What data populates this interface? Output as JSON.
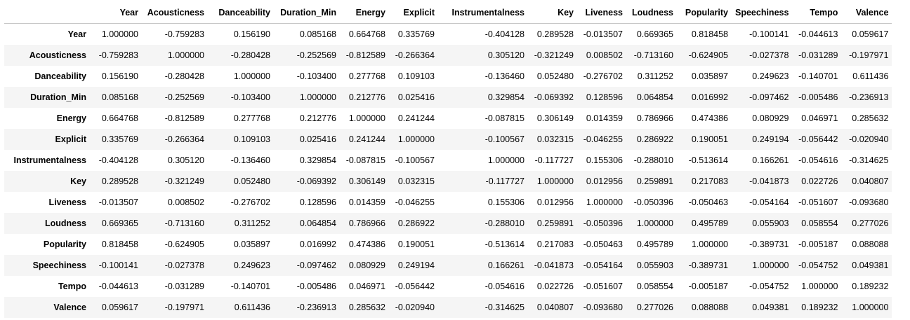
{
  "columns": [
    "Year",
    "Acousticness",
    "Danceability",
    "Duration_Min",
    "Energy",
    "Explicit",
    "Instrumentalness",
    "Key",
    "Liveness",
    "Loudness",
    "Popularity",
    "Speechiness",
    "Tempo",
    "Valence"
  ],
  "rows": [
    {
      "label": "Year",
      "values": [
        "1.000000",
        "-0.759283",
        "0.156190",
        "0.085168",
        "0.664768",
        "0.335769",
        "-0.404128",
        "0.289528",
        "-0.013507",
        "0.669365",
        "0.818458",
        "-0.100141",
        "-0.044613",
        "0.059617"
      ]
    },
    {
      "label": "Acousticness",
      "values": [
        "-0.759283",
        "1.000000",
        "-0.280428",
        "-0.252569",
        "-0.812589",
        "-0.266364",
        "0.305120",
        "-0.321249",
        "0.008502",
        "-0.713160",
        "-0.624905",
        "-0.027378",
        "-0.031289",
        "-0.197971"
      ]
    },
    {
      "label": "Danceability",
      "values": [
        "0.156190",
        "-0.280428",
        "1.000000",
        "-0.103400",
        "0.277768",
        "0.109103",
        "-0.136460",
        "0.052480",
        "-0.276702",
        "0.311252",
        "0.035897",
        "0.249623",
        "-0.140701",
        "0.611436"
      ]
    },
    {
      "label": "Duration_Min",
      "values": [
        "0.085168",
        "-0.252569",
        "-0.103400",
        "1.000000",
        "0.212776",
        "0.025416",
        "0.329854",
        "-0.069392",
        "0.128596",
        "0.064854",
        "0.016992",
        "-0.097462",
        "-0.005486",
        "-0.236913"
      ]
    },
    {
      "label": "Energy",
      "values": [
        "0.664768",
        "-0.812589",
        "0.277768",
        "0.212776",
        "1.000000",
        "0.241244",
        "-0.087815",
        "0.306149",
        "0.014359",
        "0.786966",
        "0.474386",
        "0.080929",
        "0.046971",
        "0.285632"
      ]
    },
    {
      "label": "Explicit",
      "values": [
        "0.335769",
        "-0.266364",
        "0.109103",
        "0.025416",
        "0.241244",
        "1.000000",
        "-0.100567",
        "0.032315",
        "-0.046255",
        "0.286922",
        "0.190051",
        "0.249194",
        "-0.056442",
        "-0.020940"
      ]
    },
    {
      "label": "Instrumentalness",
      "values": [
        "-0.404128",
        "0.305120",
        "-0.136460",
        "0.329854",
        "-0.087815",
        "-0.100567",
        "1.000000",
        "-0.117727",
        "0.155306",
        "-0.288010",
        "-0.513614",
        "0.166261",
        "-0.054616",
        "-0.314625"
      ]
    },
    {
      "label": "Key",
      "values": [
        "0.289528",
        "-0.321249",
        "0.052480",
        "-0.069392",
        "0.306149",
        "0.032315",
        "-0.117727",
        "1.000000",
        "0.012956",
        "0.259891",
        "0.217083",
        "-0.041873",
        "0.022726",
        "0.040807"
      ]
    },
    {
      "label": "Liveness",
      "values": [
        "-0.013507",
        "0.008502",
        "-0.276702",
        "0.128596",
        "0.014359",
        "-0.046255",
        "0.155306",
        "0.012956",
        "1.000000",
        "-0.050396",
        "-0.050463",
        "-0.054164",
        "-0.051607",
        "-0.093680"
      ]
    },
    {
      "label": "Loudness",
      "values": [
        "0.669365",
        "-0.713160",
        "0.311252",
        "0.064854",
        "0.786966",
        "0.286922",
        "-0.288010",
        "0.259891",
        "-0.050396",
        "1.000000",
        "0.495789",
        "0.055903",
        "0.058554",
        "0.277026"
      ]
    },
    {
      "label": "Popularity",
      "values": [
        "0.818458",
        "-0.624905",
        "0.035897",
        "0.016992",
        "0.474386",
        "0.190051",
        "-0.513614",
        "0.217083",
        "-0.050463",
        "0.495789",
        "1.000000",
        "-0.389731",
        "-0.005187",
        "0.088088"
      ]
    },
    {
      "label": "Speechiness",
      "values": [
        "-0.100141",
        "-0.027378",
        "0.249623",
        "-0.097462",
        "0.080929",
        "0.249194",
        "0.166261",
        "-0.041873",
        "-0.054164",
        "0.055903",
        "-0.389731",
        "1.000000",
        "-0.054752",
        "0.049381"
      ]
    },
    {
      "label": "Tempo",
      "values": [
        "-0.044613",
        "-0.031289",
        "-0.140701",
        "-0.005486",
        "0.046971",
        "-0.056442",
        "-0.054616",
        "0.022726",
        "-0.051607",
        "0.058554",
        "-0.005187",
        "-0.054752",
        "1.000000",
        "0.189232"
      ]
    },
    {
      "label": "Valence",
      "values": [
        "0.059617",
        "-0.197971",
        "0.611436",
        "-0.236913",
        "0.285632",
        "-0.020940",
        "-0.314625",
        "0.040807",
        "-0.093680",
        "0.277026",
        "0.088088",
        "0.049381",
        "0.189232",
        "1.000000"
      ]
    }
  ]
}
